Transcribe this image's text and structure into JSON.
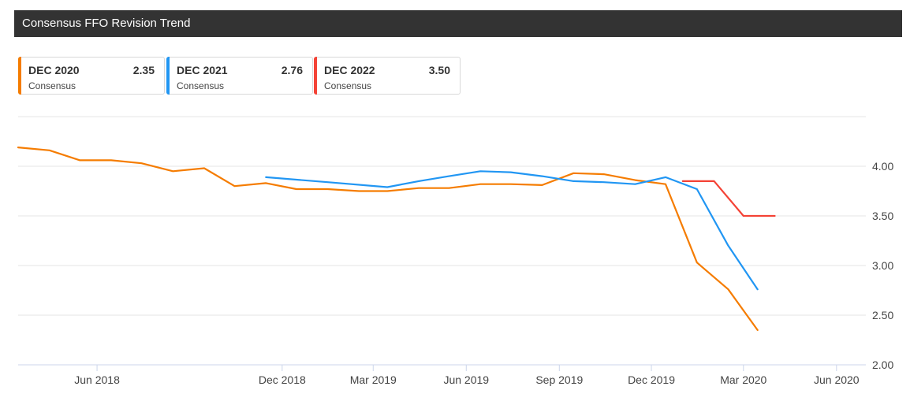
{
  "header": {
    "title": "Consensus FFO Revision Trend"
  },
  "legend": [
    {
      "name": "DEC 2020",
      "value": "2.35",
      "sub": "Consensus",
      "color": "#f57c00"
    },
    {
      "name": "DEC 2021",
      "value": "2.76",
      "sub": "Consensus",
      "color": "#2196f3"
    },
    {
      "name": "DEC 2022",
      "value": "3.50",
      "sub": "Consensus",
      "color": "#f44336"
    }
  ],
  "chart_data": {
    "type": "line",
    "title": "Consensus FFO Revision Trend",
    "xlabel": "",
    "ylabel": "",
    "x_range": [
      "2018-03-15",
      "2020-06-30"
    ],
    "ylim": [
      2.0,
      4.5
    ],
    "y_ticks": [
      2.0,
      2.5,
      3.0,
      3.5,
      4.0
    ],
    "y_tick_labels": [
      "2.00",
      "2.50",
      "3.00",
      "3.50",
      "4.00"
    ],
    "x_ticks": [
      "2018-06-01",
      "2018-12-01",
      "2019-03-01",
      "2019-06-01",
      "2019-09-01",
      "2019-12-01",
      "2020-03-01",
      "2020-06-01"
    ],
    "x_tick_labels": [
      "Jun 2018",
      "Dec 2018",
      "Mar 2019",
      "Jun 2019",
      "Sep 2019",
      "Dec 2019",
      "Mar 2020",
      "Jun 2020"
    ],
    "grid": true,
    "series": [
      {
        "name": "DEC 2020",
        "color": "#f57c00",
        "points": [
          [
            "2018-03-15",
            4.19
          ],
          [
            "2018-04-15",
            4.16
          ],
          [
            "2018-05-15",
            4.06
          ],
          [
            "2018-06-15",
            4.06
          ],
          [
            "2018-07-15",
            4.03
          ],
          [
            "2018-08-15",
            3.95
          ],
          [
            "2018-09-15",
            3.98
          ],
          [
            "2018-10-15",
            3.8
          ],
          [
            "2018-11-15",
            3.83
          ],
          [
            "2018-12-15",
            3.77
          ],
          [
            "2019-01-15",
            3.77
          ],
          [
            "2019-02-15",
            3.75
          ],
          [
            "2019-03-15",
            3.75
          ],
          [
            "2019-04-15",
            3.78
          ],
          [
            "2019-05-15",
            3.78
          ],
          [
            "2019-06-15",
            3.82
          ],
          [
            "2019-07-15",
            3.82
          ],
          [
            "2019-08-15",
            3.81
          ],
          [
            "2019-09-15",
            3.93
          ],
          [
            "2019-10-15",
            3.92
          ],
          [
            "2019-11-15",
            3.86
          ],
          [
            "2019-12-15",
            3.82
          ],
          [
            "2020-01-15",
            3.03
          ],
          [
            "2020-02-15",
            2.76
          ],
          [
            "2020-03-15",
            2.35
          ]
        ]
      },
      {
        "name": "DEC 2021",
        "color": "#2196f3",
        "points": [
          [
            "2018-11-15",
            3.89
          ],
          [
            "2019-01-15",
            3.84
          ],
          [
            "2019-03-15",
            3.79
          ],
          [
            "2019-04-15",
            3.85
          ],
          [
            "2019-05-15",
            3.9
          ],
          [
            "2019-06-15",
            3.95
          ],
          [
            "2019-07-15",
            3.94
          ],
          [
            "2019-08-15",
            3.9
          ],
          [
            "2019-09-15",
            3.85
          ],
          [
            "2019-10-15",
            3.84
          ],
          [
            "2019-11-15",
            3.82
          ],
          [
            "2019-12-15",
            3.89
          ],
          [
            "2020-01-15",
            3.77
          ],
          [
            "2020-02-15",
            3.2
          ],
          [
            "2020-03-15",
            2.76
          ]
        ]
      },
      {
        "name": "DEC 2022",
        "color": "#f44336",
        "points": [
          [
            "2020-01-01",
            3.85
          ],
          [
            "2020-02-01",
            3.85
          ],
          [
            "2020-03-01",
            3.5
          ],
          [
            "2020-04-01",
            3.5
          ]
        ]
      }
    ]
  }
}
